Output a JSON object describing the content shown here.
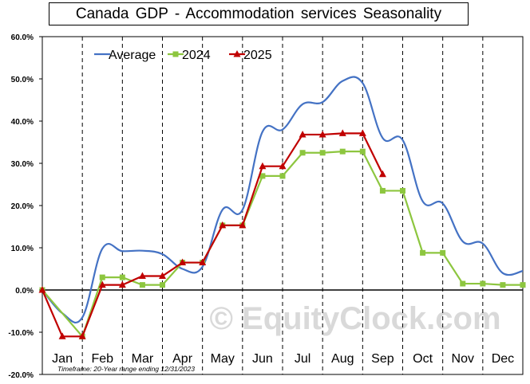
{
  "chart_data": {
    "type": "line",
    "title": "Canada  GDP - Accommodation  services Seasonality",
    "xlabel": "",
    "ylabel": "",
    "categories": [
      "Jan",
      "Feb",
      "Mar",
      "Apr",
      "May",
      "Jun",
      "Jul",
      "Aug",
      "Sep",
      "Oct",
      "Nov",
      "Dec"
    ],
    "y_ticks": [
      "60.0%",
      "50.0%",
      "40.0%",
      "30.0%",
      "20.0%",
      "10.0%",
      "0.0%",
      "-10.0%",
      "-20.0%"
    ],
    "ylim": [
      -20,
      60
    ],
    "x_range": [
      0,
      12
    ],
    "grid": "vertical dashed at month boundaries, horizontal at zero",
    "legend_position": "top-left",
    "series": [
      {
        "name": "Average",
        "color": "#4472C4",
        "marker": "none",
        "x": [
          0,
          0.5,
          1.0,
          1.5,
          2.0,
          2.5,
          3.0,
          3.5,
          4.0,
          4.5,
          5.0,
          5.5,
          6.0,
          6.5,
          7.0,
          7.5,
          8.0,
          8.5,
          9.0,
          9.5,
          10.0,
          10.5,
          11.0,
          11.5,
          12.0
        ],
        "values": [
          0.0,
          -5.5,
          -6.5,
          9.8,
          9.2,
          9.3,
          8.5,
          5.0,
          5.5,
          19.0,
          19.0,
          37.5,
          38.0,
          44.0,
          44.5,
          49.5,
          49.0,
          36.0,
          35.5,
          21.0,
          20.5,
          11.5,
          11.0,
          4.0,
          4.5
        ]
      },
      {
        "name": "2024",
        "color": "#8DC63F",
        "marker": "square",
        "x": [
          0,
          1.0,
          1.5,
          2.0,
          2.5,
          3.0,
          3.5,
          4.0,
          4.5,
          5.0,
          5.5,
          6.0,
          6.5,
          7.0,
          7.5,
          8.0,
          8.5,
          9.0,
          9.5,
          10.0,
          10.5,
          11.0,
          11.5,
          12.0
        ],
        "values": [
          0.0,
          -11.0,
          3.0,
          3.0,
          1.2,
          1.2,
          6.5,
          6.5,
          15.3,
          15.3,
          27.0,
          27.0,
          32.5,
          32.5,
          32.8,
          32.8,
          23.5,
          23.5,
          8.8,
          8.8,
          1.5,
          1.5,
          1.2,
          1.2
        ]
      },
      {
        "name": "2025",
        "color": "#C00000",
        "marker": "triangle",
        "x": [
          0,
          0.5,
          1.0,
          1.5,
          2.0,
          2.5,
          3.0,
          3.5,
          4.0,
          4.5,
          5.0,
          5.5,
          6.0,
          6.5,
          7.0,
          7.5,
          8.0,
          8.5
        ],
        "values": [
          0.0,
          -11.0,
          -11.0,
          1.2,
          1.2,
          3.3,
          3.3,
          6.5,
          6.5,
          15.3,
          15.3,
          29.3,
          29.3,
          36.8,
          36.8,
          37.1,
          37.1,
          27.4
        ]
      }
    ],
    "annotations": [
      "Timeframe: 20-Year range ending 12/31/2023"
    ],
    "watermark": "© EquityClock.com"
  }
}
